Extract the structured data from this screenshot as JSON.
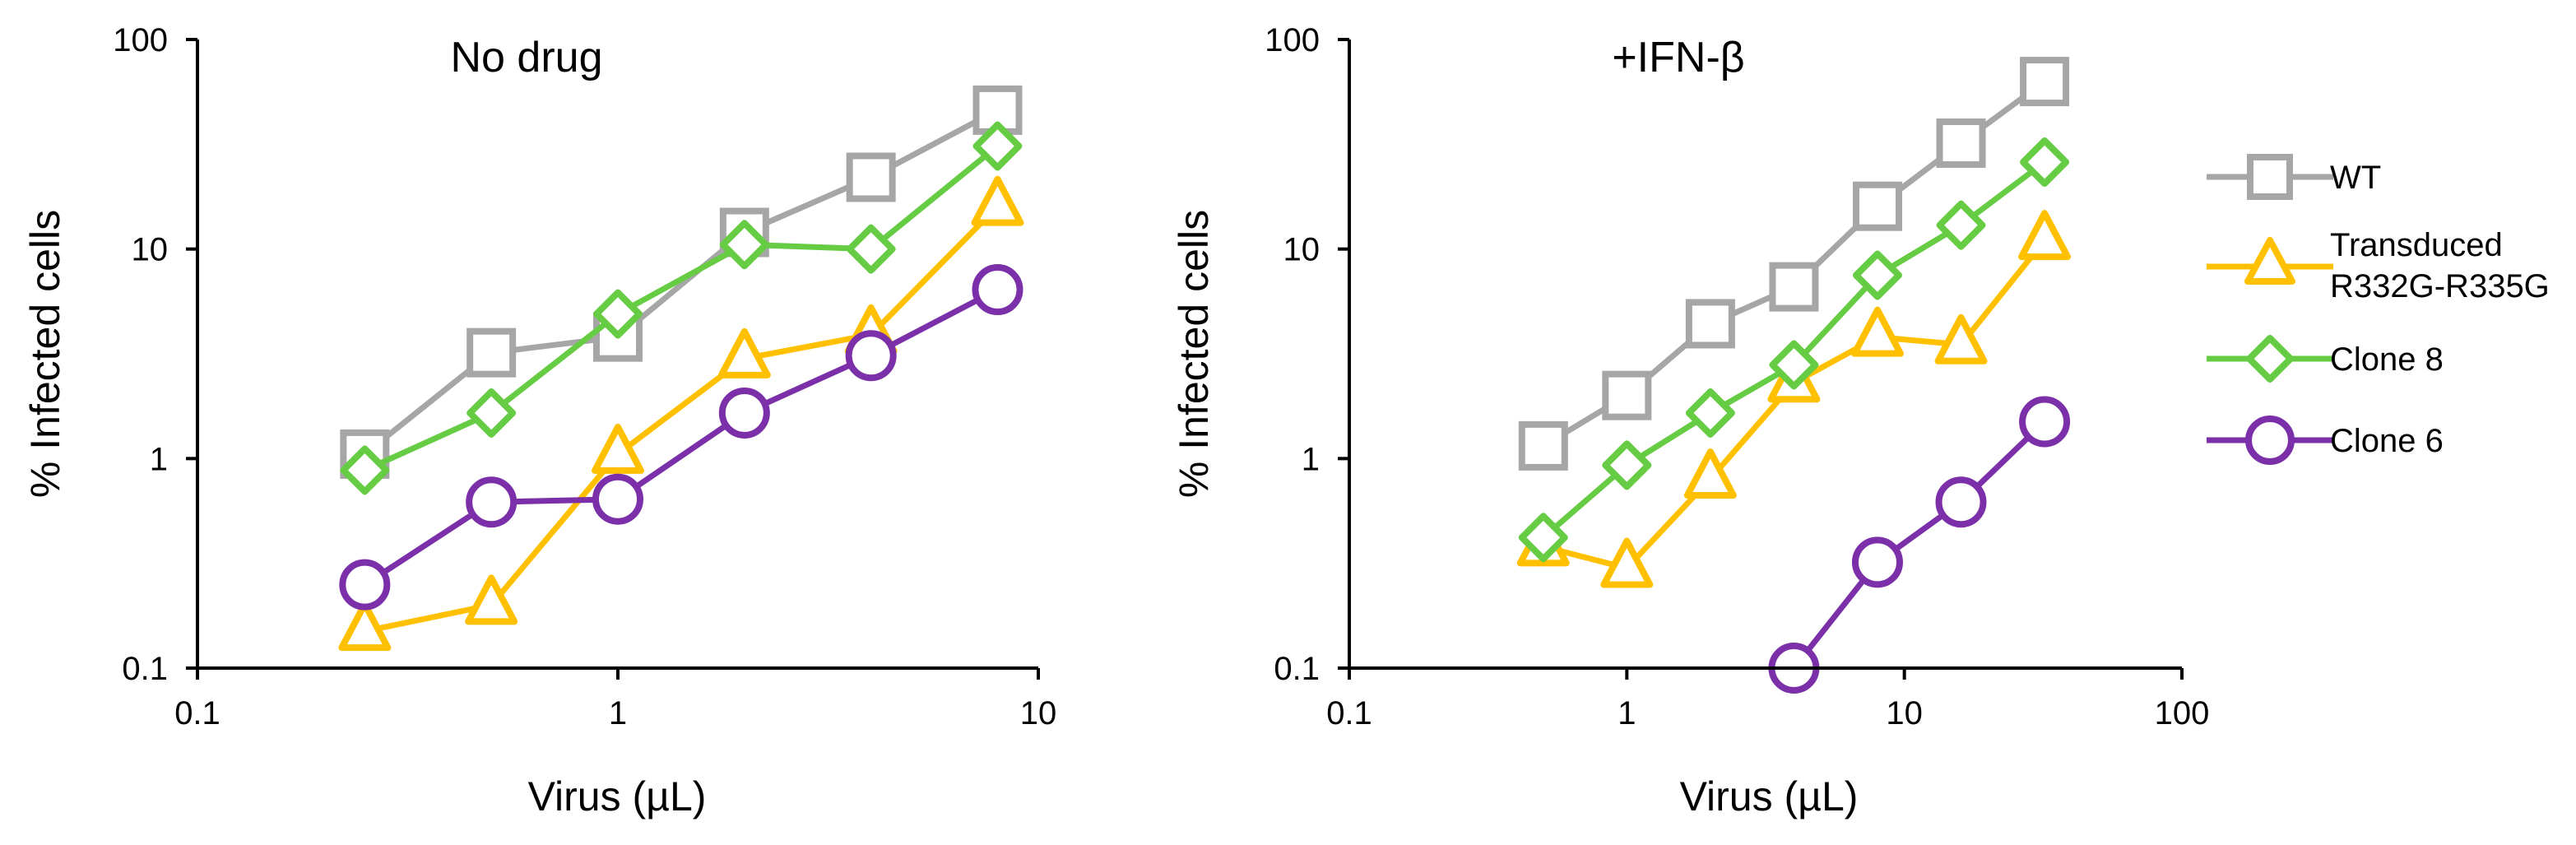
{
  "chart_data": [
    {
      "type": "line",
      "title": "No drug",
      "xlabel": "Virus (µL)",
      "ylabel": "% Infected cells",
      "xscale": "log",
      "yscale": "log",
      "xlim": [
        0.1,
        10
      ],
      "ylim": [
        0.1,
        100
      ],
      "xticks": [
        "0.1",
        "1",
        "10"
      ],
      "yticks": [
        "0.1",
        "1",
        "10",
        "100"
      ],
      "series": [
        {
          "name": "WT",
          "x": [
            0.25,
            0.5,
            1,
            2,
            4,
            8
          ],
          "y": [
            1.05,
            3.2,
            3.8,
            12.0,
            22.0,
            46.0
          ]
        },
        {
          "name": "Transduced R332G-R335G",
          "x": [
            0.25,
            0.5,
            1,
            2,
            4,
            8
          ],
          "y": [
            0.15,
            0.2,
            1.05,
            3.0,
            3.9,
            16.0
          ]
        },
        {
          "name": "Clone 8",
          "x": [
            0.25,
            0.5,
            1,
            2,
            4,
            8
          ],
          "y": [
            0.88,
            1.65,
            4.9,
            10.5,
            10.0,
            31.0
          ]
        },
        {
          "name": "Clone 6",
          "x": [
            0.25,
            0.5,
            1,
            2,
            4,
            8
          ],
          "y": [
            0.25,
            0.62,
            0.64,
            1.65,
            3.1,
            6.4
          ]
        }
      ]
    },
    {
      "type": "line",
      "title": "+IFN-β",
      "xlabel": "Virus (µL)",
      "ylabel": "% Infected cells",
      "xscale": "log",
      "yscale": "log",
      "xlim": [
        0.1,
        100
      ],
      "ylim": [
        0.1,
        100
      ],
      "xticks": [
        "0.1",
        "1",
        "10",
        "100"
      ],
      "yticks": [
        "0.1",
        "1",
        "10",
        "100"
      ],
      "series": [
        {
          "name": "WT",
          "x": [
            0.5,
            1,
            2,
            4,
            8,
            16,
            32
          ],
          "y": [
            1.15,
            2.0,
            4.4,
            6.6,
            16.0,
            32.0,
            63.0
          ]
        },
        {
          "name": "Transduced R332G-R335G",
          "x": [
            0.5,
            1,
            2,
            4,
            8,
            16,
            32
          ],
          "y": [
            0.38,
            0.3,
            0.8,
            2.3,
            3.8,
            3.5,
            11.0
          ]
        },
        {
          "name": "Clone 8",
          "x": [
            0.5,
            1,
            2,
            4,
            8,
            16,
            32
          ],
          "y": [
            0.42,
            0.93,
            1.65,
            2.8,
            7.5,
            13.0,
            26.0
          ]
        },
        {
          "name": "Clone 6",
          "x": [
            4,
            8,
            16,
            32
          ],
          "y": [
            0.1,
            0.32,
            0.62,
            1.5
          ]
        }
      ]
    }
  ],
  "legend": {
    "placement": "right",
    "items": [
      {
        "label": "WT"
      },
      {
        "label": "Transduced R332G-R335G",
        "lines": [
          "Transduced",
          "R332G-R335G"
        ]
      },
      {
        "label": "Clone 8"
      },
      {
        "label": "Clone 6"
      }
    ]
  },
  "styles": {
    "WT": {
      "color": "#A6A6A6",
      "marker": "square"
    },
    "Transduced R332G-R335G": {
      "color": "#FFC000",
      "marker": "triangle"
    },
    "Clone 8": {
      "color": "#66CC44",
      "marker": "diamond"
    },
    "Clone 6": {
      "color": "#7B2FA8",
      "marker": "circle"
    }
  }
}
